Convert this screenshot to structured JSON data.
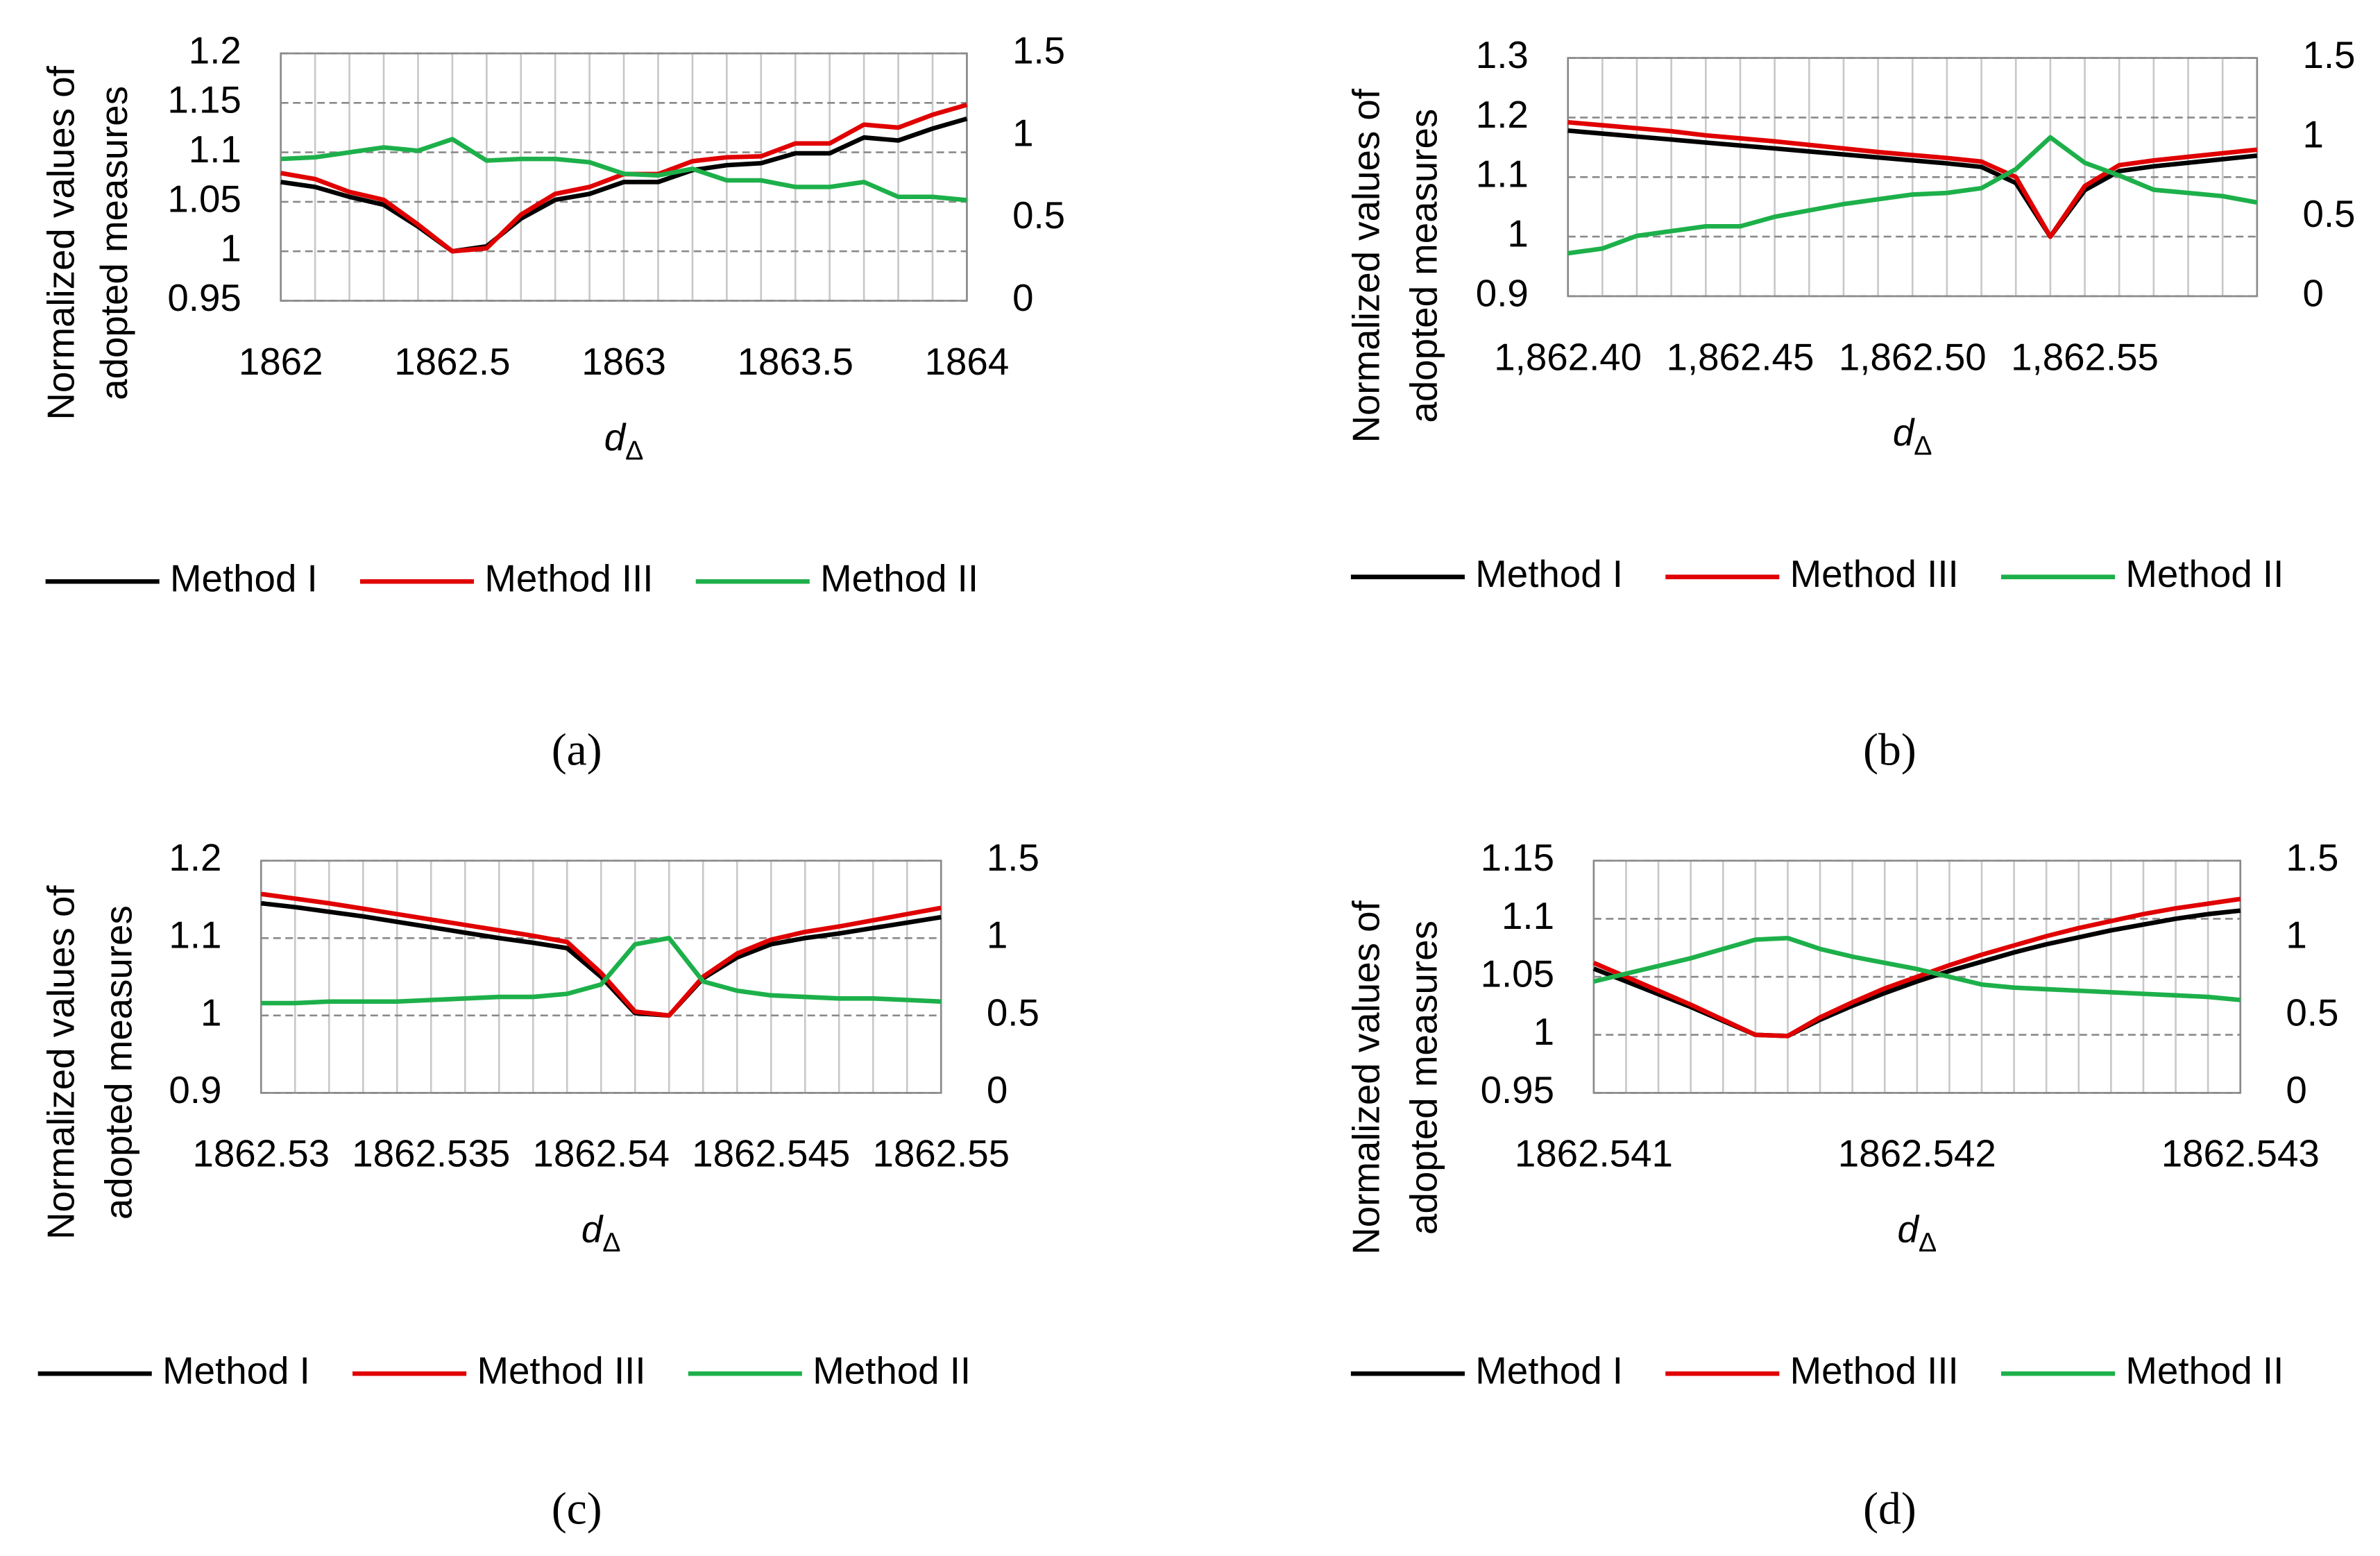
{
  "chart_data": [
    {
      "type": "line",
      "panel": "(a)",
      "ylabel": [
        "Normalized values of",
        "adopted measures"
      ],
      "xlabel": [
        "d",
        "Δ"
      ],
      "x": [
        1862,
        1862.1,
        1862.2,
        1862.3,
        1862.4,
        1862.5,
        1862.6,
        1862.7,
        1862.8,
        1862.9,
        1863,
        1863.1,
        1863.2,
        1863.3,
        1863.4,
        1863.5,
        1863.6,
        1863.7,
        1863.8,
        1863.9,
        1864
      ],
      "xlim": [
        1862,
        1864
      ],
      "xticks": [
        1862,
        1862.5,
        1863,
        1863.5,
        1864
      ],
      "ylim": [
        0.95,
        1.2
      ],
      "yticks": [
        0.95,
        1,
        1.05,
        1.1,
        1.15,
        1.2
      ],
      "y2lim": [
        0,
        1.5
      ],
      "y2ticks": [
        0,
        0.5,
        1,
        1.5
      ],
      "grid": true,
      "xgrid": true,
      "series": [
        {
          "name": "Method I",
          "color": "#000000",
          "values": [
            1.07,
            1.065,
            1.055,
            1.047,
            1.025,
            1.0,
            1.005,
            1.033,
            1.052,
            1.058,
            1.07,
            1.07,
            1.082,
            1.087,
            1.089,
            1.099,
            1.099,
            1.115,
            1.112,
            1.124,
            1.134
          ]
        },
        {
          "name": "Method III",
          "color": "#e00000",
          "values": [
            1.079,
            1.073,
            1.06,
            1.052,
            1.027,
            1.0,
            1.003,
            1.037,
            1.058,
            1.065,
            1.078,
            1.078,
            1.091,
            1.095,
            1.096,
            1.109,
            1.109,
            1.128,
            1.125,
            1.138,
            1.148
          ]
        },
        {
          "name": "Method II",
          "color": "#1db04a",
          "axis": "y2",
          "values": [
            0.86,
            0.87,
            0.9,
            0.93,
            0.91,
            0.98,
            0.85,
            0.86,
            0.86,
            0.84,
            0.77,
            0.76,
            0.8,
            0.73,
            0.73,
            0.69,
            0.69,
            0.72,
            0.63,
            0.63,
            0.61
          ]
        }
      ]
    },
    {
      "type": "line",
      "panel": "(b)",
      "ylabel": [
        "Normalized values of",
        "adopted measures"
      ],
      "xlabel": [
        "d",
        "Δ"
      ],
      "x": [
        1862.4,
        1862.41,
        1862.42,
        1862.43,
        1862.44,
        1862.45,
        1862.46,
        1862.47,
        1862.48,
        1862.49,
        1862.5,
        1862.51,
        1862.52,
        1862.53,
        1862.54,
        1862.55,
        1862.56,
        1862.57,
        1862.58,
        1862.59,
        1862.6
      ],
      "xlim": [
        1862.4,
        1862.6
      ],
      "xticks": [
        {
          "value": 1862.4,
          "label": "1,862.40"
        },
        {
          "value": 1862.45,
          "label": "1,862.45"
        },
        {
          "value": 1862.5,
          "label": "1,862.50"
        },
        {
          "value": 1862.55,
          "label": "1,862.55"
        }
      ],
      "ylim": [
        0.9,
        1.3
      ],
      "yticks": [
        0.9,
        1,
        1.1,
        1.2,
        1.3
      ],
      "y2lim": [
        0,
        1.5
      ],
      "y2ticks": [
        0,
        0.5,
        1,
        1.5
      ],
      "grid": true,
      "xgrid": true,
      "series": [
        {
          "name": "Method I",
          "color": "#000000",
          "values": [
            1.178,
            1.173,
            1.168,
            1.163,
            1.158,
            1.153,
            1.148,
            1.143,
            1.138,
            1.133,
            1.128,
            1.123,
            1.117,
            1.09,
            1.0,
            1.078,
            1.11,
            1.118,
            1.124,
            1.13,
            1.136
          ]
        },
        {
          "name": "Method III",
          "color": "#e00000",
          "values": [
            1.192,
            1.187,
            1.182,
            1.177,
            1.17,
            1.165,
            1.16,
            1.154,
            1.148,
            1.142,
            1.137,
            1.132,
            1.126,
            1.1,
            1.0,
            1.085,
            1.12,
            1.128,
            1.134,
            1.14,
            1.146
          ]
        },
        {
          "name": "Method II",
          "color": "#1db04a",
          "axis": "y2",
          "values": [
            0.27,
            0.3,
            0.38,
            0.41,
            0.44,
            0.44,
            0.5,
            0.54,
            0.58,
            0.61,
            0.64,
            0.65,
            0.68,
            0.8,
            1.0,
            0.84,
            0.76,
            0.67,
            0.65,
            0.63,
            0.59
          ]
        }
      ]
    },
    {
      "type": "line",
      "panel": "(c)",
      "ylabel": [
        "Normalized values of",
        "adopted measures"
      ],
      "xlabel": [
        "d",
        "Δ"
      ],
      "x": [
        1862.53,
        1862.531,
        1862.532,
        1862.533,
        1862.534,
        1862.535,
        1862.536,
        1862.537,
        1862.538,
        1862.539,
        1862.54,
        1862.541,
        1862.542,
        1862.543,
        1862.544,
        1862.545,
        1862.546,
        1862.547,
        1862.548,
        1862.549,
        1862.55
      ],
      "xlim": [
        1862.53,
        1862.55
      ],
      "xticks": [
        1862.53,
        1862.535,
        1862.54,
        1862.545,
        1862.55
      ],
      "ylim": [
        0.9,
        1.2
      ],
      "yticks": [
        0.9,
        1,
        1.1,
        1.2
      ],
      "y2lim": [
        0,
        1.5
      ],
      "y2ticks": [
        0,
        0.5,
        1,
        1.5
      ],
      "grid": true,
      "xgrid": true,
      "series": [
        {
          "name": "Method I",
          "color": "#000000",
          "values": [
            1.145,
            1.14,
            1.134,
            1.128,
            1.121,
            1.114,
            1.107,
            1.1,
            1.094,
            1.087,
            1.05,
            1.003,
            1.0,
            1.048,
            1.075,
            1.092,
            1.1,
            1.106,
            1.113,
            1.12,
            1.127
          ]
        },
        {
          "name": "Method III",
          "color": "#e00000",
          "values": [
            1.157,
            1.151,
            1.145,
            1.138,
            1.131,
            1.124,
            1.117,
            1.11,
            1.103,
            1.095,
            1.055,
            1.005,
            1.0,
            1.05,
            1.08,
            1.098,
            1.108,
            1.115,
            1.123,
            1.131,
            1.139
          ]
        },
        {
          "name": "Method II",
          "color": "#1db04a",
          "axis": "y2",
          "values": [
            0.58,
            0.58,
            0.59,
            0.59,
            0.59,
            0.6,
            0.61,
            0.62,
            0.62,
            0.64,
            0.7,
            0.96,
            1.0,
            0.72,
            0.66,
            0.63,
            0.62,
            0.61,
            0.61,
            0.6,
            0.59
          ]
        }
      ]
    },
    {
      "type": "line",
      "panel": "(d)",
      "ylabel": [
        "Normalized values of",
        "adopted measures"
      ],
      "xlabel": [
        "d",
        "Δ"
      ],
      "x": [
        1862.541,
        1862.5411,
        1862.5412,
        1862.5413,
        1862.5414,
        1862.5415,
        1862.5416,
        1862.5417,
        1862.5418,
        1862.5419,
        1862.542,
        1862.5421,
        1862.5422,
        1862.5423,
        1862.5424,
        1862.5425,
        1862.5426,
        1862.5427,
        1862.5428,
        1862.5429,
        1862.543
      ],
      "xlim": [
        1862.541,
        1862.543
      ],
      "xticks": [
        1862.541,
        1862.542,
        1862.543
      ],
      "ylim": [
        0.95,
        1.15
      ],
      "yticks": [
        0.95,
        1,
        1.05,
        1.1,
        1.15
      ],
      "y2lim": [
        0,
        1.5
      ],
      "y2ticks": [
        0,
        0.5,
        1,
        1.5
      ],
      "grid": true,
      "xgrid": true,
      "series": [
        {
          "name": "Method I",
          "color": "#000000",
          "values": [
            1.057,
            1.046,
            1.035,
            1.024,
            1.012,
            1.0,
            0.999,
            1.013,
            1.025,
            1.036,
            1.046,
            1.055,
            1.063,
            1.071,
            1.078,
            1.084,
            1.09,
            1.095,
            1.1,
            1.104,
            1.107
          ]
        },
        {
          "name": "Method III",
          "color": "#e00000",
          "values": [
            1.062,
            1.05,
            1.038,
            1.026,
            1.013,
            1.0,
            0.999,
            1.015,
            1.028,
            1.04,
            1.05,
            1.06,
            1.069,
            1.077,
            1.085,
            1.092,
            1.098,
            1.104,
            1.109,
            1.113,
            1.117
          ]
        },
        {
          "name": "Method II",
          "color": "#1db04a",
          "axis": "y2",
          "values": [
            0.72,
            0.77,
            0.82,
            0.87,
            0.93,
            0.99,
            1.0,
            0.93,
            0.88,
            0.84,
            0.8,
            0.75,
            0.7,
            0.68,
            0.67,
            0.66,
            0.65,
            0.64,
            0.63,
            0.62,
            0.6
          ]
        }
      ]
    }
  ]
}
